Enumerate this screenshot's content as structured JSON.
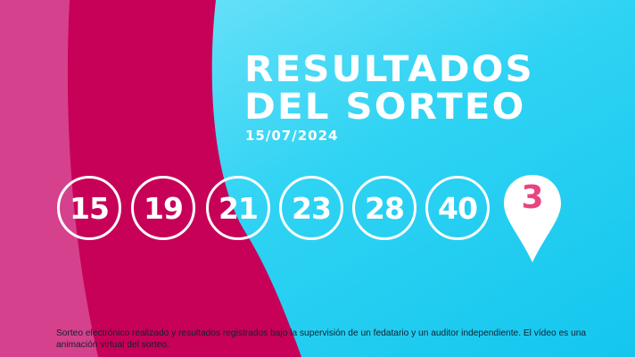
{
  "header": {
    "title_line1": "RESULTADOS",
    "title_line2": "DEL SORTEO",
    "date": "15/07/2024"
  },
  "results": {
    "numbers": [
      "15",
      "19",
      "21",
      "23",
      "28",
      "40"
    ],
    "special_number": "3"
  },
  "disclaimer": "Sorteo electrónico realizado y resultados registrados bajo la supervisión de un fedatario y un auditor independiente. El vídeo es una animación virtual del sorteo.",
  "colors": {
    "pink": "#d5418c",
    "crimson": "#c70058",
    "cyan": "#1fd0f2",
    "special_number": "#e8457f"
  }
}
